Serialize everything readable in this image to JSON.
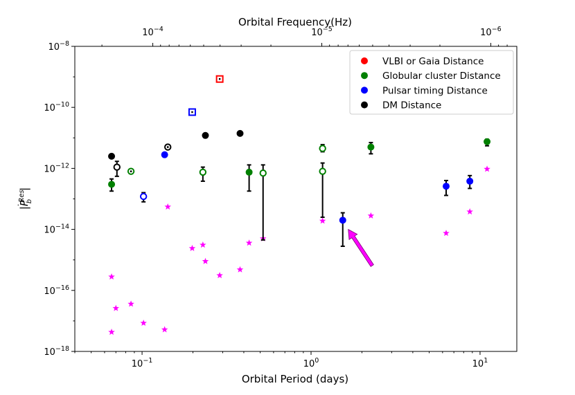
{
  "chart_data": {
    "type": "scatter",
    "xscale": "log",
    "yscale": "log",
    "xlim": [
      0.04,
      16.5
    ],
    "ylim": [
      1e-18,
      1e-08
    ],
    "xlabel": "Orbital Period (days)",
    "ylabel": "|Ṗ_b^Res|",
    "top_xlabel": "Orbital Frequency(Hz)",
    "x_ticks": [
      {
        "value": 0.1,
        "base": "10",
        "exp": "−1"
      },
      {
        "value": 1,
        "base": "10",
        "exp": "0"
      },
      {
        "value": 10,
        "base": "10",
        "exp": "1"
      }
    ],
    "top_ticks": [
      {
        "value": 0.11574,
        "base": "10",
        "exp": "−4"
      },
      {
        "value": 1.1574,
        "base": "10",
        "exp": "−5"
      },
      {
        "value": 11.574,
        "base": "10",
        "exp": "−6"
      }
    ],
    "y_ticks": [
      {
        "value": 1e-08,
        "base": "10",
        "exp": "−8"
      },
      {
        "value": 1e-10,
        "base": "10",
        "exp": "−10"
      },
      {
        "value": 1e-12,
        "base": "10",
        "exp": "−12"
      },
      {
        "value": 1e-14,
        "base": "10",
        "exp": "−14"
      },
      {
        "value": 1e-16,
        "base": "10",
        "exp": "−16"
      },
      {
        "value": 1e-18,
        "base": "10",
        "exp": "−18"
      }
    ],
    "legend": [
      {
        "label": "VLBI or Gaia Distance",
        "color": "#ff0000"
      },
      {
        "label": "Globular cluster Distance",
        "color": "#008000"
      },
      {
        "label": "Pulsar timing Distance",
        "color": "#0000ff"
      },
      {
        "label": "DM Distance",
        "color": "#000000"
      }
    ],
    "legend_position": "top-right",
    "markers": [
      {
        "x": 0.066,
        "y": 2.5e-12,
        "color": "#000000",
        "style": "filled"
      },
      {
        "x": 0.066,
        "y": 3e-13,
        "color": "#008000",
        "style": "filled",
        "err_lo": 1.8e-13,
        "err_hi": 4.5e-13
      },
      {
        "x": 0.071,
        "y": 1.1e-12,
        "color": "#000000",
        "style": "open",
        "err_lo": 5.5e-13,
        "err_hi": 1.7e-12
      },
      {
        "x": 0.086,
        "y": 8e-13,
        "color": "#008000",
        "style": "open-dot"
      },
      {
        "x": 0.102,
        "y": 1.2e-13,
        "color": "#0000ff",
        "style": "open",
        "err_lo": 8e-14,
        "err_hi": 1.6e-13
      },
      {
        "x": 0.136,
        "y": 2.8e-12,
        "color": "#0000ff",
        "style": "filled"
      },
      {
        "x": 0.142,
        "y": 5e-12,
        "color": "#000000",
        "style": "open-dot"
      },
      {
        "x": 0.198,
        "y": 7e-11,
        "color": "#0000ff",
        "style": "square"
      },
      {
        "x": 0.229,
        "y": 7.5e-13,
        "color": "#008000",
        "style": "open",
        "err_lo": 3.8e-13,
        "err_hi": 1.1e-12
      },
      {
        "x": 0.237,
        "y": 1.2e-11,
        "color": "#000000",
        "style": "filled"
      },
      {
        "x": 0.288,
        "y": 8.5e-10,
        "color": "#ff0000",
        "style": "square"
      },
      {
        "x": 0.38,
        "y": 1.4e-11,
        "color": "#000000",
        "style": "filled"
      },
      {
        "x": 0.43,
        "y": 7.5e-13,
        "color": "#008000",
        "style": "filled",
        "err_lo": 1.8e-13,
        "err_hi": 1.3e-12
      },
      {
        "x": 0.52,
        "y": 7e-13,
        "color": "#008000",
        "style": "open",
        "err_lo": 4.5e-15,
        "err_hi": 1.3e-12
      },
      {
        "x": 1.17,
        "y": 8e-13,
        "color": "#008000",
        "style": "open",
        "err_lo": 2.5e-14,
        "err_hi": 1.5e-12
      },
      {
        "x": 1.17,
        "y": 4.5e-12,
        "color": "#008000",
        "style": "open",
        "err_lo": 3.5e-12,
        "err_hi": 6e-12
      },
      {
        "x": 1.54,
        "y": 2e-14,
        "color": "#0000ff",
        "style": "filled",
        "err_lo": 2.8e-15,
        "err_hi": 3.5e-14
      },
      {
        "x": 2.26,
        "y": 5e-12,
        "color": "#008000",
        "style": "filled",
        "err_lo": 3e-12,
        "err_hi": 7e-12
      },
      {
        "x": 6.3,
        "y": 2.6e-13,
        "color": "#0000ff",
        "style": "filled",
        "err_lo": 1.3e-13,
        "err_hi": 4e-13
      },
      {
        "x": 8.7,
        "y": 3.8e-13,
        "color": "#0000ff",
        "style": "filled",
        "err_lo": 2.2e-13,
        "err_hi": 5.8e-13
      },
      {
        "x": 11.0,
        "y": 7.5e-12,
        "color": "#008000",
        "style": "filled",
        "err_lo": 5.5e-12,
        "err_hi": 9e-12
      }
    ],
    "stars": {
      "color": "#ff00ff",
      "points": [
        [
          0.066,
          2.8e-16
        ],
        [
          0.066,
          4.3e-18
        ],
        [
          0.07,
          2.6e-17
        ],
        [
          0.086,
          3.6e-17
        ],
        [
          0.102,
          8.5e-18
        ],
        [
          0.136,
          5.2e-18
        ],
        [
          0.142,
          5.5e-14
        ],
        [
          0.198,
          2.4e-15
        ],
        [
          0.229,
          3.1e-15
        ],
        [
          0.237,
          9e-16
        ],
        [
          0.288,
          3.1e-16
        ],
        [
          0.38,
          4.8e-16
        ],
        [
          0.43,
          3.6e-15
        ],
        [
          0.52,
          5e-15
        ],
        [
          1.17,
          1.9e-14
        ],
        [
          2.26,
          2.8e-14
        ],
        [
          6.3,
          7.5e-15
        ],
        [
          8.7,
          3.8e-14
        ],
        [
          11.0,
          9.5e-13
        ]
      ]
    },
    "annotation_arrow": {
      "color": "#ff00ff",
      "from": [
        2.3,
        6.5e-16
      ],
      "to": [
        1.66,
        1e-14
      ]
    }
  }
}
